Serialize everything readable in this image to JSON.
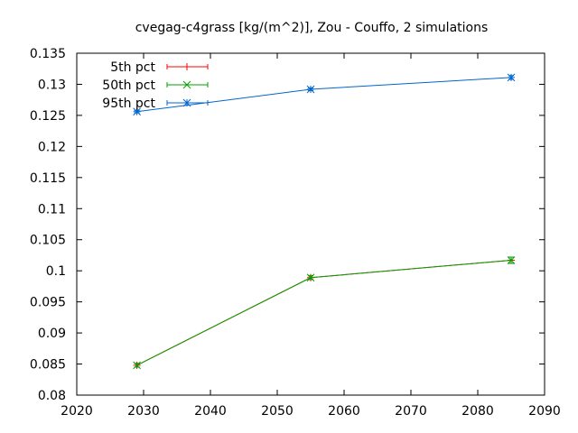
{
  "chart_data": {
    "type": "line",
    "title": "cvegag-c4grass [kg/(m^2)], Zou - Couffo, 2 simulations",
    "xlabel": "",
    "ylabel": "",
    "xlim": [
      2020,
      2090
    ],
    "ylim": [
      0.08,
      0.135
    ],
    "x_ticks": [
      "2020",
      "2030",
      "2040",
      "2050",
      "2060",
      "2070",
      "2080",
      "2090"
    ],
    "y_ticks": [
      "0.08",
      "0.085",
      "0.09",
      "0.095",
      "0.1",
      "0.105",
      "0.11",
      "0.115",
      "0.12",
      "0.125",
      "0.13",
      "0.135"
    ],
    "grid": false,
    "legend_position": "top-left",
    "x": [
      2029,
      2055,
      2085
    ],
    "series": [
      {
        "name": "5th pct",
        "color": "#ff0000",
        "marker": "plus",
        "values": [
          0.0848,
          0.0989,
          0.1017
        ],
        "err_low": [
          0.0845,
          0.0986,
          0.1012
        ],
        "err_high": [
          0.0851,
          0.0992,
          0.1022
        ]
      },
      {
        "name": "50th pct",
        "color": "#00a000",
        "marker": "cross",
        "values": [
          0.0848,
          0.0989,
          0.1017
        ],
        "err_low": [
          0.0845,
          0.0986,
          0.1012
        ],
        "err_high": [
          0.0851,
          0.0992,
          0.1022
        ]
      },
      {
        "name": "95th pct",
        "color": "#0066cc",
        "marker": "star",
        "values": [
          0.1256,
          0.1292,
          0.1311
        ],
        "err_low": [
          0.1254,
          0.129,
          0.1308
        ],
        "err_high": [
          0.1258,
          0.1294,
          0.1314
        ]
      }
    ]
  }
}
